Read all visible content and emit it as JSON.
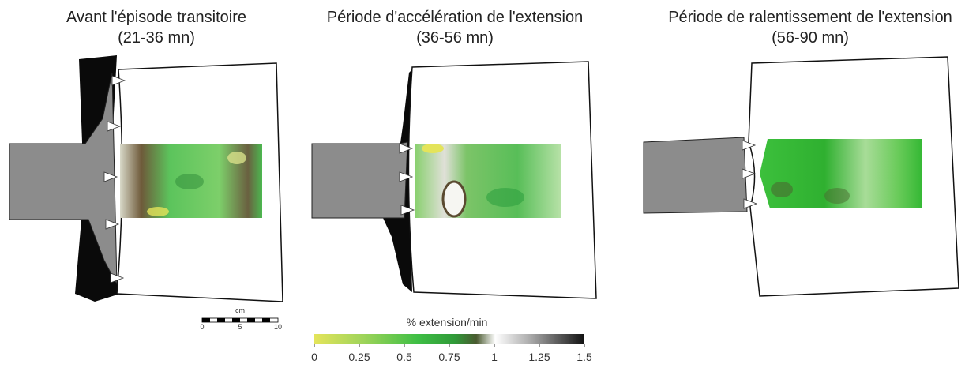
{
  "panels": [
    {
      "title": "Avant l'épisode transitoire",
      "subtitle": "(21-36 mn)"
    },
    {
      "title": "Période d'accélération de l'extension",
      "subtitle": "(36-56 mn)"
    },
    {
      "title": "Période de ralentissement de l'extension",
      "subtitle": "(56-90 mn)"
    }
  ],
  "scale_bar": {
    "unit": "cm",
    "ticks": [
      0,
      5,
      10
    ]
  },
  "colorbar": {
    "label": "% extension/min",
    "ticks": [
      0,
      0.25,
      0.5,
      0.75,
      1,
      1.25,
      1.5
    ]
  }
}
